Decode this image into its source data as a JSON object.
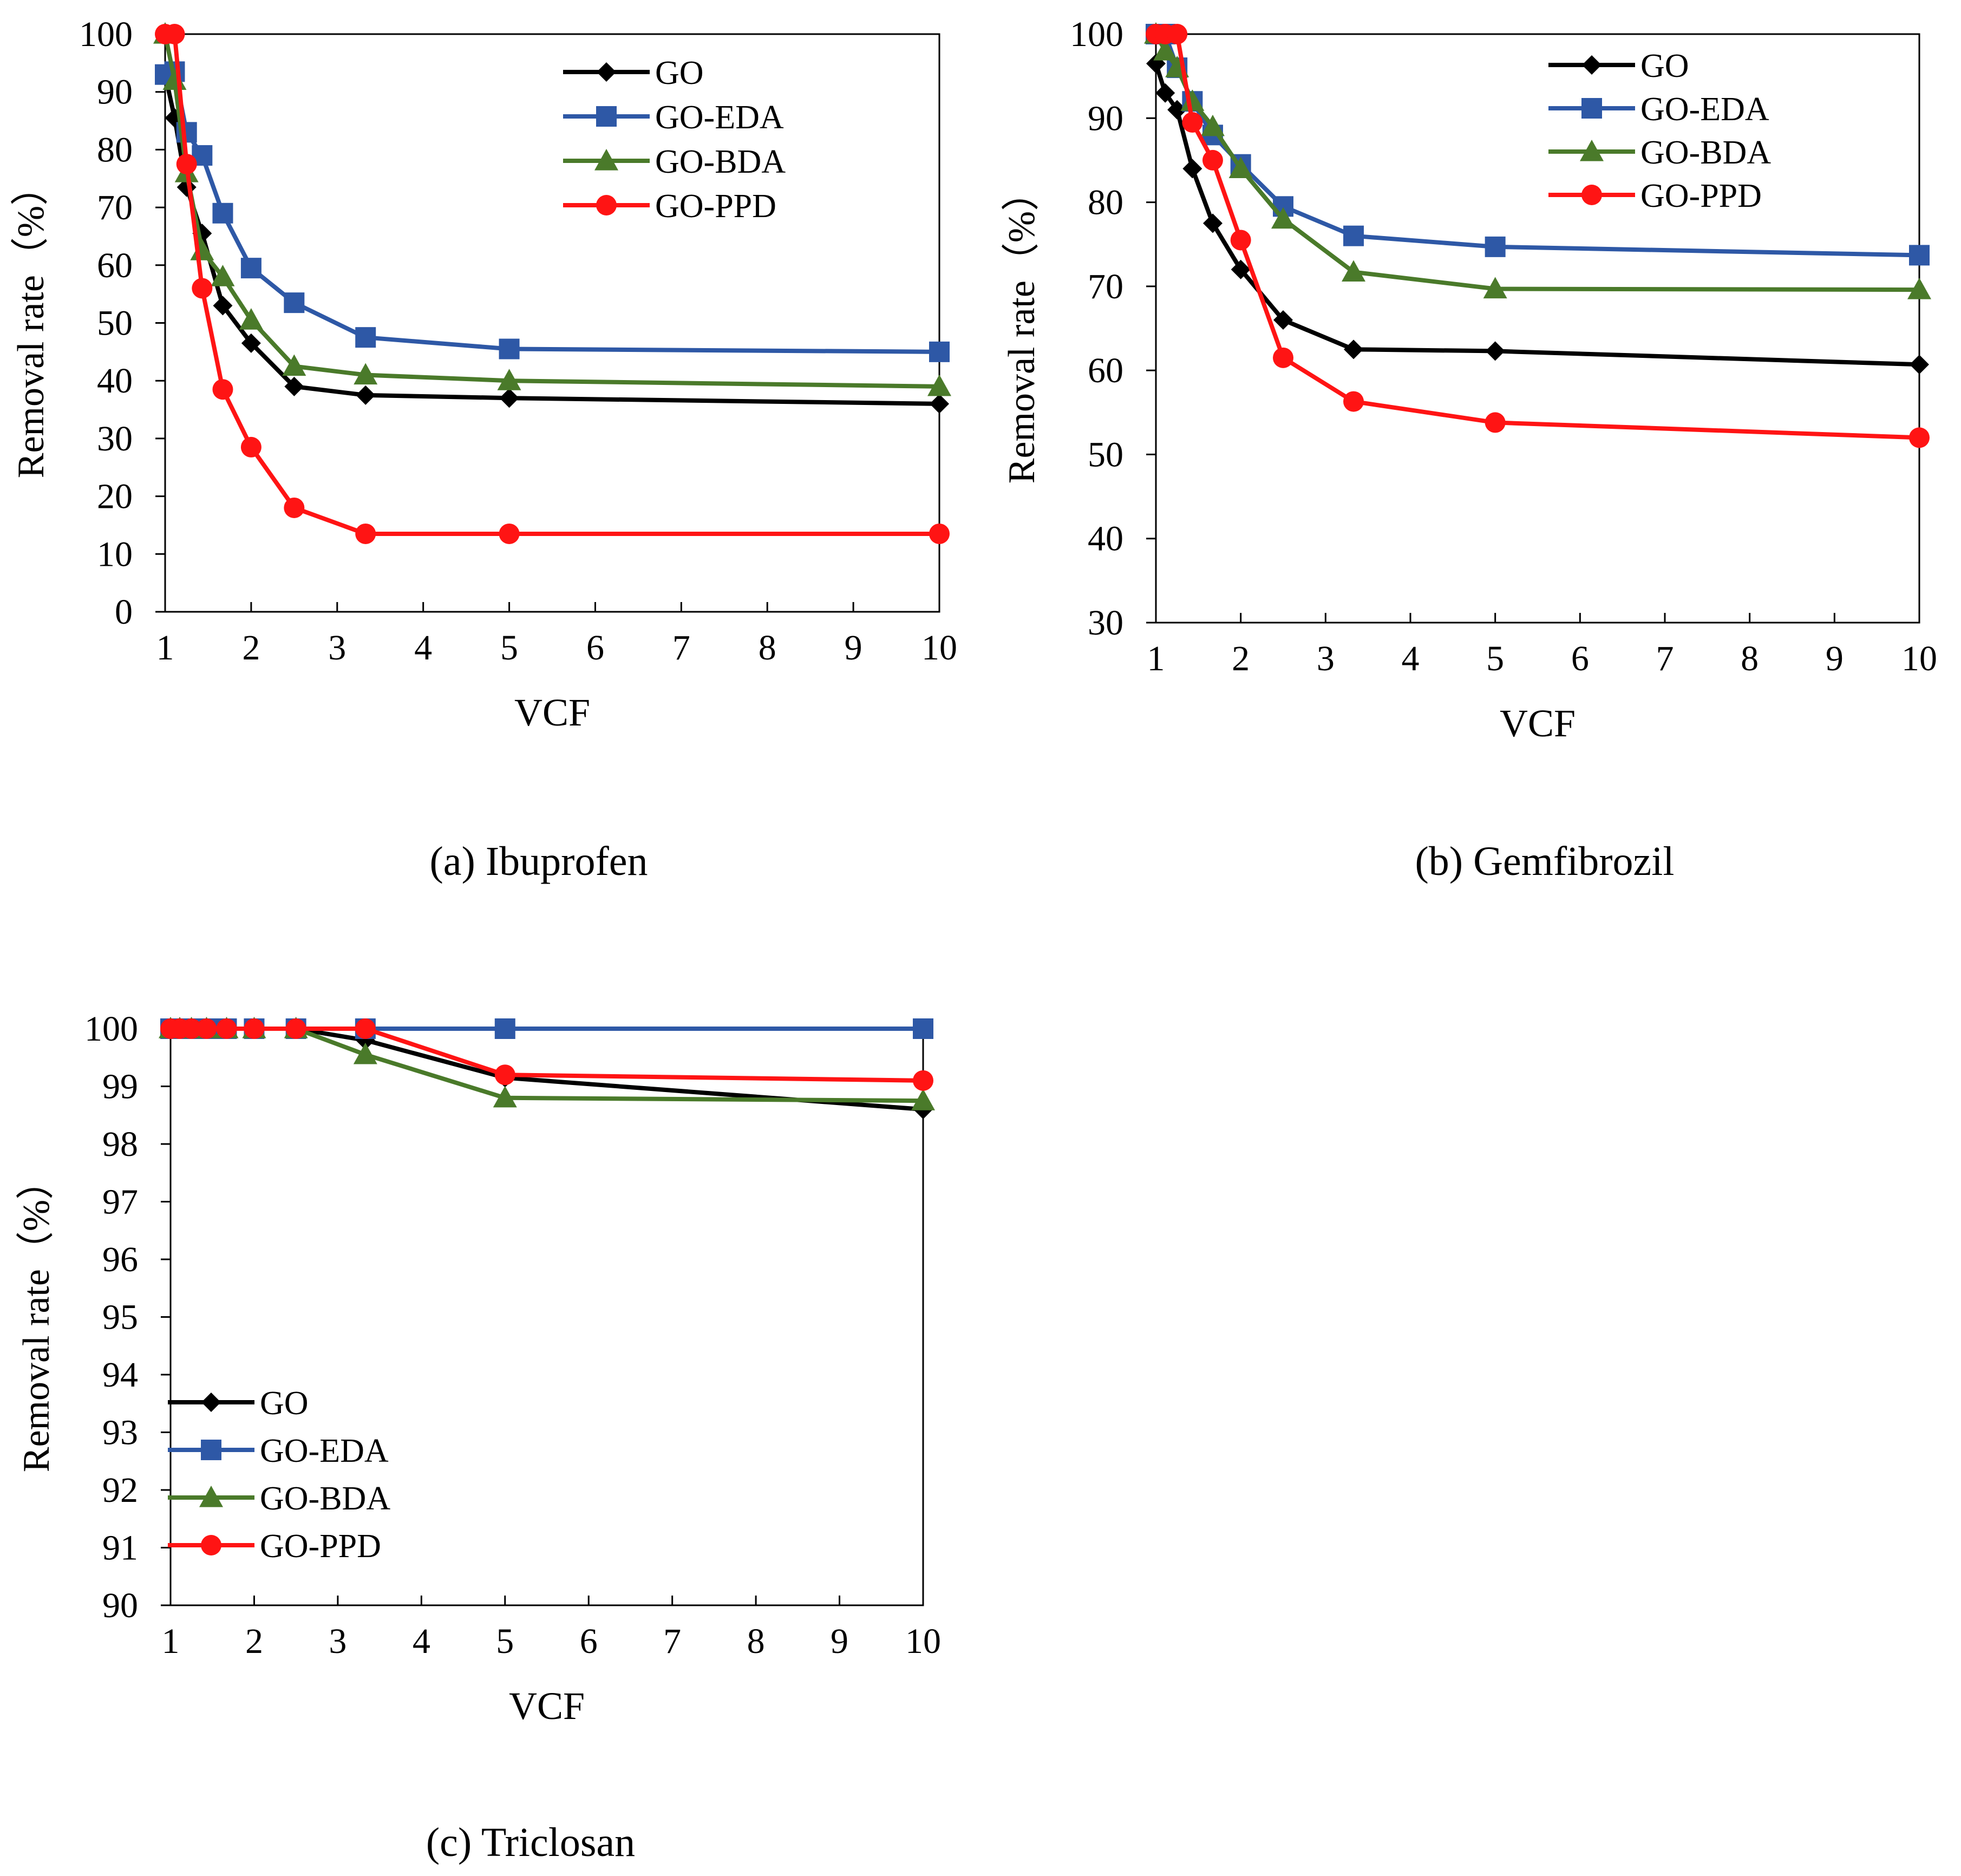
{
  "colors": {
    "GO": "#000000",
    "GO-EDA": "#2e58a6",
    "GO-BDA": "#4a7a2a",
    "GO-PPD": "#ff1414"
  },
  "chart_data": [
    {
      "panel": "a",
      "type": "line",
      "caption": "(a) Ibuprofen",
      "xlabel": "VCF",
      "ylabel": "Removal rate（%）",
      "xlim": [
        1,
        10
      ],
      "ylim": [
        0,
        100
      ],
      "xticks": [
        1,
        2,
        3,
        4,
        5,
        6,
        7,
        8,
        9,
        10
      ],
      "yticks": [
        0,
        10,
        20,
        30,
        40,
        50,
        60,
        70,
        80,
        90,
        100
      ],
      "legend_position": "top-right",
      "series": [
        {
          "name": "GO",
          "marker": "diamond",
          "x": [
            1,
            1.11,
            1.25,
            1.43,
            1.67,
            2,
            2.5,
            3.33,
            5,
            10
          ],
          "y": [
            93,
            85.5,
            73.5,
            65.5,
            53,
            46.5,
            39,
            37.5,
            37,
            36
          ]
        },
        {
          "name": "GO-EDA",
          "marker": "square",
          "x": [
            1,
            1.11,
            1.25,
            1.43,
            1.67,
            2,
            2.5,
            3.33,
            5,
            10
          ],
          "y": [
            93,
            93.5,
            83,
            79,
            69,
            59.5,
            53.5,
            47.5,
            45.5,
            45
          ]
        },
        {
          "name": "GO-BDA",
          "marker": "triangle",
          "x": [
            1,
            1.11,
            1.25,
            1.43,
            1.67,
            2,
            2.5,
            3.33,
            5,
            10
          ],
          "y": [
            100,
            92,
            76,
            62.5,
            58,
            50.5,
            42.5,
            41,
            40,
            39
          ]
        },
        {
          "name": "GO-PPD",
          "marker": "circle",
          "x": [
            1,
            1.11,
            1.25,
            1.43,
            1.67,
            2,
            2.5,
            3.33,
            5,
            10
          ],
          "y": [
            100,
            100,
            77.5,
            56,
            38.5,
            28.5,
            18,
            13.5,
            13.5,
            13.5
          ]
        }
      ]
    },
    {
      "panel": "b",
      "type": "line",
      "caption": "(b) Gemfibrozil",
      "xlabel": "VCF",
      "ylabel": "Removal rate（%）",
      "xlim": [
        1,
        10
      ],
      "ylim": [
        30,
        100
      ],
      "xticks": [
        1,
        2,
        3,
        4,
        5,
        6,
        7,
        8,
        9,
        10
      ],
      "yticks": [
        30,
        40,
        50,
        60,
        70,
        80,
        90,
        100
      ],
      "legend_position": "top-right",
      "series": [
        {
          "name": "GO",
          "marker": "diamond",
          "x": [
            1,
            1.11,
            1.25,
            1.43,
            1.67,
            2,
            2.5,
            3.33,
            5,
            10
          ],
          "y": [
            96.5,
            93,
            91,
            84,
            77.5,
            72,
            66,
            62.5,
            62.3,
            60.7
          ]
        },
        {
          "name": "GO-EDA",
          "marker": "square",
          "x": [
            1,
            1.11,
            1.25,
            1.43,
            1.67,
            2,
            2.5,
            3.33,
            5,
            10
          ],
          "y": [
            100,
            100,
            96,
            92,
            88,
            84.5,
            79.5,
            76,
            74.7,
            73.7
          ]
        },
        {
          "name": "GO-BDA",
          "marker": "triangle",
          "x": [
            1,
            1.11,
            1.25,
            1.43,
            1.67,
            2,
            2.5,
            3.33,
            5,
            10
          ],
          "y": [
            100,
            98,
            96,
            92,
            89,
            84,
            78,
            71.7,
            69.7,
            69.6
          ]
        },
        {
          "name": "GO-PPD",
          "marker": "circle",
          "x": [
            1,
            1.11,
            1.25,
            1.43,
            1.67,
            2,
            2.5,
            3.33,
            5,
            10
          ],
          "y": [
            100,
            100,
            100,
            89.5,
            85,
            75.5,
            61.5,
            56.3,
            53.8,
            52
          ]
        }
      ]
    },
    {
      "panel": "c",
      "type": "line",
      "caption": "(c) Triclosan",
      "xlabel": "VCF",
      "ylabel": "Removal rate（%）",
      "xlim": [
        1,
        10
      ],
      "ylim": [
        90,
        100
      ],
      "xticks": [
        1,
        2,
        3,
        4,
        5,
        6,
        7,
        8,
        9,
        10
      ],
      "yticks": [
        90,
        91,
        92,
        93,
        94,
        95,
        96,
        97,
        98,
        99,
        100
      ],
      "legend_position": "bottom-left",
      "series": [
        {
          "name": "GO",
          "marker": "diamond",
          "x": [
            1,
            1.11,
            1.25,
            1.43,
            1.67,
            2,
            2.5,
            3.33,
            5,
            10
          ],
          "y": [
            100,
            100,
            100,
            100,
            100,
            100,
            100,
            99.8,
            99.15,
            98.6
          ]
        },
        {
          "name": "GO-EDA",
          "marker": "square",
          "x": [
            1,
            1.11,
            1.25,
            1.43,
            1.67,
            2,
            2.5,
            3.33,
            5,
            10
          ],
          "y": [
            100,
            100,
            100,
            100,
            100,
            100,
            100,
            100,
            100,
            100
          ]
        },
        {
          "name": "GO-BDA",
          "marker": "triangle",
          "x": [
            1,
            1.11,
            1.25,
            1.43,
            1.67,
            2,
            2.5,
            3.33,
            5,
            10
          ],
          "y": [
            100,
            100,
            100,
            100,
            100,
            100,
            100,
            99.55,
            98.8,
            98.75
          ]
        },
        {
          "name": "GO-PPD",
          "marker": "circle",
          "x": [
            1,
            1.11,
            1.25,
            1.43,
            1.67,
            2,
            2.5,
            3.33,
            5,
            10
          ],
          "y": [
            100,
            100,
            100,
            100,
            100,
            100,
            100,
            100,
            99.2,
            99.1
          ]
        }
      ]
    }
  ]
}
